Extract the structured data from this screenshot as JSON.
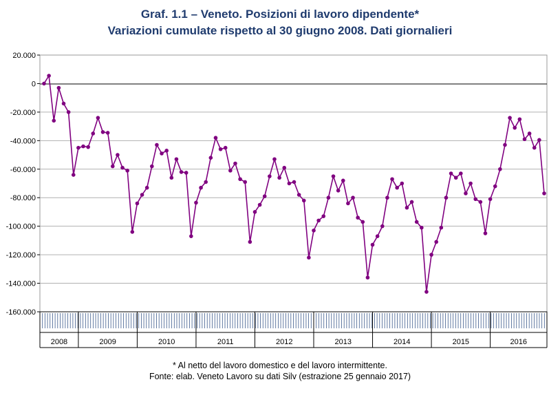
{
  "header": {
    "title": "Graf. 1.1 – Veneto. Posizioni di lavoro dipendente*",
    "subtitle": "Variazioni cumulate rispetto al 30 giugno 2008. Dati giornalieri"
  },
  "footer": {
    "note": "* Al netto del lavoro domestico e del lavoro intermittente.",
    "source": "Fonte: elab. Veneto Lavoro su dati Silv (estrazione 25 gennaio 2017)"
  },
  "colors": {
    "series": "#800080",
    "grid": "#999999",
    "title": "#1f3b6e"
  },
  "chart_data": {
    "type": "line",
    "title": "Graf. 1.1 – Veneto. Posizioni di lavoro dipendente*",
    "subtitle": "Variazioni cumulate rispetto al 30 giugno 2008. Dati giornalieri",
    "xlabel": "",
    "ylabel": "",
    "ylim": [
      -160000,
      20000
    ],
    "yticks": [
      20000,
      0,
      -20000,
      -40000,
      -60000,
      -80000,
      -100000,
      -120000,
      -140000,
      -160000
    ],
    "ytick_labels": [
      "20.000",
      "0",
      "-20.000",
      "-40.000",
      "-60.000",
      "-80.000",
      "-100.000",
      "-120.000",
      "-140.000",
      "-160.000"
    ],
    "grid": true,
    "legend": "none",
    "marker": "circle",
    "x_unit": "month",
    "x_start": "2008-06",
    "x_end": "2016-12",
    "year_labels": [
      "2008",
      "2009",
      "2010",
      "2011",
      "2012",
      "2013",
      "2014",
      "2015",
      "2016"
    ],
    "series": [
      {
        "values": [
          0,
          5500,
          -26000,
          -3000,
          -14000,
          -20000,
          -64000,
          -45000,
          -44000,
          -44500,
          -35000,
          -24000,
          -34000,
          -34500,
          -58000,
          -50000,
          -59000,
          -61000,
          -104000,
          -84000,
          -78000,
          -73000,
          -58000,
          -43000,
          -49000,
          -47000,
          -66000,
          -53000,
          -62000,
          -62500,
          -107000,
          -83500,
          -73000,
          -69000,
          -52000,
          -38000,
          -46000,
          -45000,
          -61000,
          -56000,
          -67000,
          -69000,
          -111000,
          -90000,
          -85000,
          -79000,
          -65000,
          -53000,
          -66000,
          -59000,
          -70000,
          -69000,
          -78000,
          -82000,
          -122000,
          -103000,
          -96000,
          -93000,
          -80000,
          -65000,
          -75000,
          -68000,
          -84000,
          -80000,
          -94000,
          -97000,
          -136000,
          -113000,
          -107000,
          -100000,
          -80000,
          -67000,
          -73000,
          -70000,
          -87000,
          -83000,
          -97000,
          -101000,
          -146000,
          -120000,
          -111000,
          -101000,
          -80000,
          -63000,
          -66000,
          -63000,
          -77000,
          -70000,
          -81000,
          -83000,
          -105000,
          -81000,
          -72000,
          -60000,
          -43000,
          -24000,
          -31000,
          -25000,
          -39000,
          -35000,
          -45000,
          -39500,
          -77000
        ]
      }
    ]
  }
}
